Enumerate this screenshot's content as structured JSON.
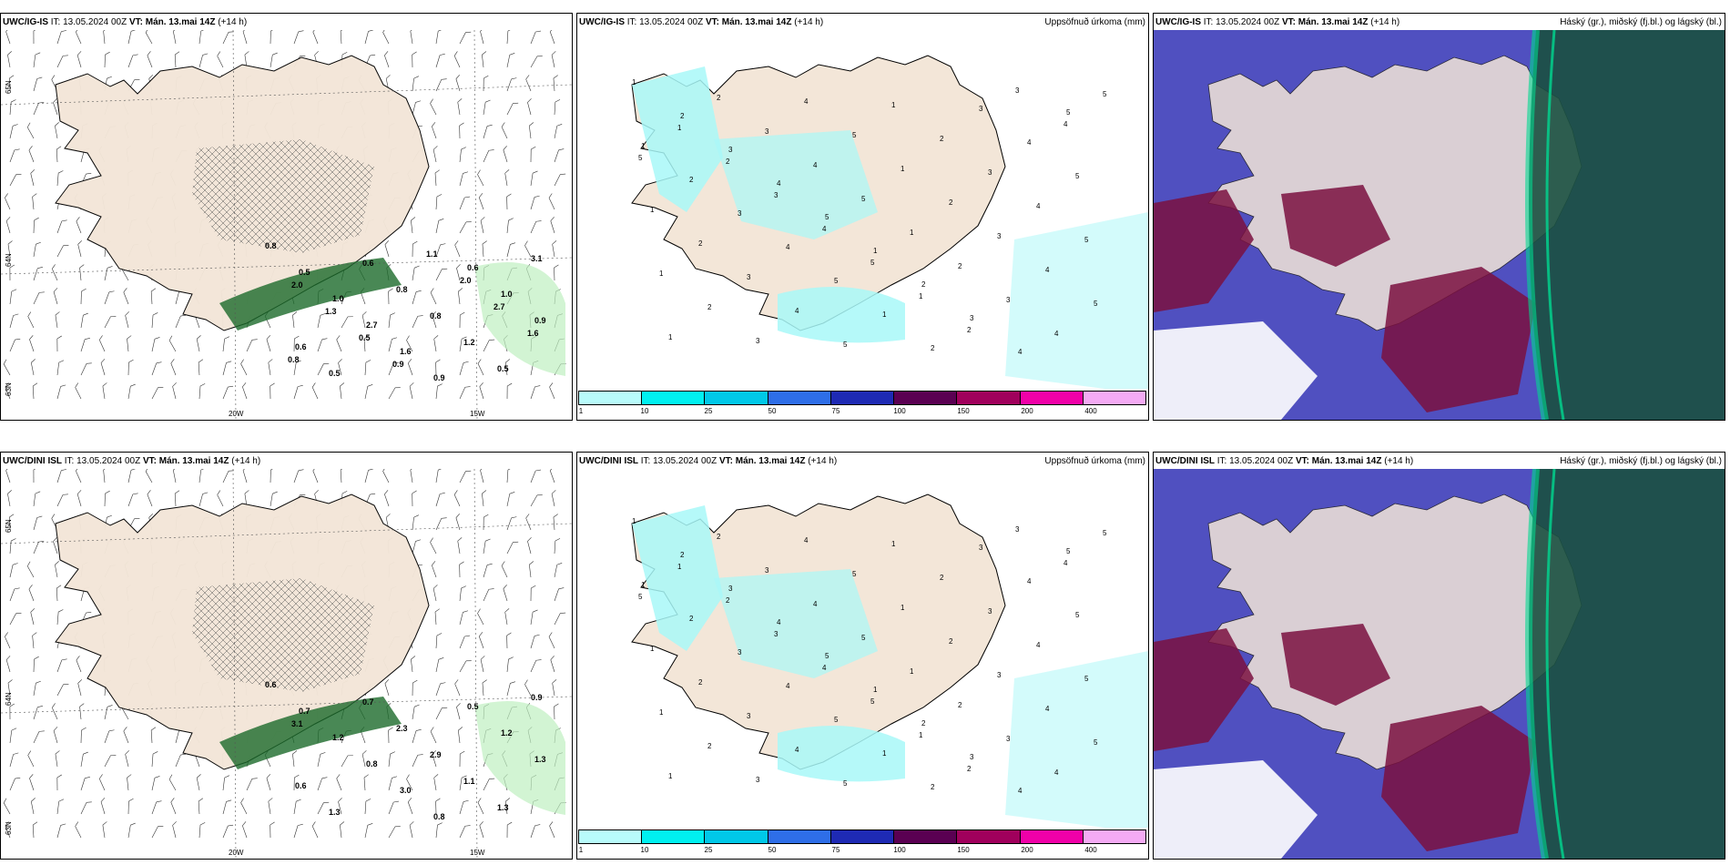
{
  "rows": [
    {
      "model": "UWC/IG-IS",
      "it": "IT: 13.05.2024 00Z",
      "vt_label": "VT:",
      "vt": "Mán. 13.mai 14Z",
      "lead": "(+14 h)",
      "panels": [
        {
          "kind": "wind",
          "right_title": ""
        },
        {
          "kind": "precip",
          "right_title": "Uppsöfnuð úrkoma (mm)"
        },
        {
          "kind": "cloud",
          "right_title": "Háský (gr.), miðský (fj.bl.) og lágský (bl.)"
        }
      ],
      "axis": {
        "lat_top": "65N",
        "lat_mid": "64N",
        "lat_bot": "63N",
        "lon_left": "20W",
        "lon_right": "15W"
      },
      "labels": [
        "0.8",
        "0.5",
        "1.0",
        "2.7",
        "1.6",
        "0.9",
        "0.6",
        "1.0",
        "0.9",
        "0.6",
        "0.5",
        "0.6",
        "0.8",
        "0.8",
        "1.2",
        "0.5",
        "3.1",
        "2.0",
        "1.3",
        "0.5",
        "0.9",
        "1.1",
        "2.0",
        "2.7",
        "1.6",
        "0.8"
      ]
    },
    {
      "model": "UWC/DINI ISL",
      "it": "IT: 13.05.2024 00Z",
      "vt_label": "VT:",
      "vt": "Mán. 13.mai 14Z",
      "lead": "(+14 h)",
      "panels": [
        {
          "kind": "wind",
          "right_title": ""
        },
        {
          "kind": "precip",
          "right_title": "Uppsöfnuð úrkoma (mm)"
        },
        {
          "kind": "cloud",
          "right_title": "Háský (gr.), miðský (fj.bl.) og lágský (bl.)"
        }
      ],
      "axis": {
        "lat_top": "65N",
        "lat_mid": "64N",
        "lat_bot": "63N",
        "lon_left": "20W",
        "lon_right": "15W"
      },
      "labels": [
        "0.6",
        "0.7",
        "1.2",
        "0.8",
        "3.0",
        "0.8",
        "0.5",
        "1.2",
        "1.3",
        "0.6",
        "1.3",
        "0.7",
        "2.3",
        "2.9",
        "1.1",
        "1.3",
        "0.9",
        "3.1"
      ]
    }
  ],
  "colorbar": {
    "ticks": [
      "1",
      "10",
      "25",
      "50",
      "75",
      "100",
      "150",
      "200",
      "400"
    ],
    "colors": [
      "#b8fbfb",
      "#00f0f0",
      "#00c8e8",
      "#2e6ee8",
      "#1e2ab4",
      "#5a0052",
      "#a0005c",
      "#f000a8",
      "#f4aaf4"
    ]
  },
  "colors": {
    "land": "#f3e6d8",
    "sea": "#ffffff",
    "precip_light": "#a8f8f8",
    "cloud_mid": "#5050c0",
    "cloud_low": "#7a1040",
    "cloud_high": "#1a5040",
    "green": "#00d890"
  }
}
